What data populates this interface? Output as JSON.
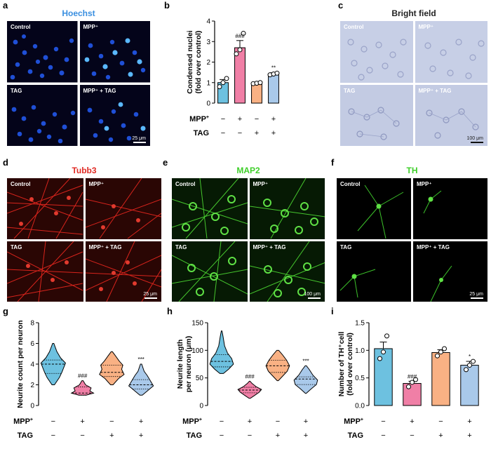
{
  "panels": {
    "a": {
      "letter": "a",
      "title": "Hoechst",
      "labels": [
        "Control",
        "MPP⁺",
        "TAG",
        "MPP⁺ + TAG"
      ],
      "scale": "25 μm",
      "title_color": "#3a8fe0"
    },
    "c": {
      "letter": "c",
      "title": "Bright field",
      "labels": [
        "Control",
        "MPP⁺",
        "TAG",
        "MPP⁺ + TAG"
      ],
      "scale": "100 μm"
    },
    "d": {
      "letter": "d",
      "title": "Tubb3",
      "labels": [
        "Control",
        "MPP⁺",
        "TAG",
        "MPP⁺ + TAG"
      ],
      "scale": "25 μm",
      "title_color": "#e02a24"
    },
    "e": {
      "letter": "e",
      "title": "MAP2",
      "labels": [
        "Control",
        "MPP⁺",
        "TAG",
        "MPP⁺ + TAG"
      ],
      "scale": "100 μm",
      "title_color": "#3fcf2a"
    },
    "f": {
      "letter": "f",
      "title": "TH",
      "labels": [
        "Control",
        "MPP⁺",
        "TAG",
        "MPP⁺ + TAG"
      ],
      "scale": "25 μm",
      "title_color": "#3fcf2a"
    }
  },
  "treatment_rows": {
    "mpp_label": "MPP",
    "mpp_sup": "+",
    "tag_label": "TAG",
    "mpp": [
      "−",
      "+",
      "−",
      "+"
    ],
    "tag": [
      "−",
      "−",
      "+",
      "+"
    ]
  },
  "colors": {
    "ctrl": "#6dc1e0",
    "mpp": "#f07fa6",
    "tag": "#f9b184",
    "both": "#a9c9ea"
  },
  "chart_data": [
    {
      "panel": "b",
      "type": "bar",
      "ylabel": [
        "Condensed nuclei",
        "(fold over control)"
      ],
      "ylim": [
        0,
        4
      ],
      "ticks": [
        "0",
        "1",
        "2",
        "3",
        "4"
      ],
      "categories": [
        "Control",
        "MPP+",
        "TAG",
        "MPP+ + TAG"
      ],
      "values": [
        1.0,
        2.7,
        0.97,
        1.42
      ],
      "errors": [
        0.15,
        0.35,
        0.05,
        0.06
      ],
      "points": [
        [
          0.8,
          1.0,
          1.2
        ],
        [
          2.4,
          2.6,
          3.4
        ],
        [
          0.95,
          0.97,
          1.0
        ],
        [
          1.38,
          1.42,
          1.46
        ]
      ],
      "annotations": [
        "",
        "###",
        "",
        "**"
      ]
    },
    {
      "panel": "g",
      "type": "violin",
      "ylabel": [
        "Neurite count per neuron"
      ],
      "ylim": [
        0,
        8
      ],
      "ticks": [
        "0",
        "2",
        "4",
        "6",
        "8"
      ],
      "categories": [
        "Control",
        "MPP+",
        "TAG",
        "MPP+ + TAG"
      ],
      "distribution": [
        [
          [
            2,
            0.1
          ],
          [
            2.7,
            0.5
          ],
          [
            3.2,
            0.7
          ],
          [
            3.8,
            0.9
          ],
          [
            4.1,
            1.0
          ],
          [
            4.6,
            0.6
          ],
          [
            5.2,
            0.3
          ],
          [
            6.0,
            0.05
          ]
        ],
        [
          [
            1,
            0.3
          ],
          [
            1.2,
            0.9
          ],
          [
            1.4,
            0.6
          ],
          [
            1.7,
            0.7
          ],
          [
            2.0,
            0.25
          ],
          [
            2.4,
            0.05
          ]
        ],
        [
          [
            2,
            0.1
          ],
          [
            2.6,
            0.55
          ],
          [
            3.0,
            1.0
          ],
          [
            3.5,
            0.8
          ],
          [
            3.9,
            0.9
          ],
          [
            4.3,
            0.6
          ],
          [
            4.8,
            0.3
          ],
          [
            5.2,
            0.05
          ]
        ],
        [
          [
            1,
            0.1
          ],
          [
            1.4,
            0.5
          ],
          [
            1.9,
            1.0
          ],
          [
            2.4,
            0.75
          ],
          [
            2.9,
            0.5
          ],
          [
            3.3,
            0.25
          ],
          [
            4.0,
            0.05
          ]
        ]
      ],
      "median": [
        4.0,
        1.2,
        3.2,
        2.0
      ],
      "q1": [
        3.1,
        1.0,
        2.8,
        1.6
      ],
      "q3": [
        4.4,
        1.8,
        3.9,
        2.5
      ],
      "annotations": [
        "",
        "###",
        "",
        "***"
      ]
    },
    {
      "panel": "h",
      "type": "violin",
      "ylabel": [
        "Neurite length",
        "per neuron (μm)"
      ],
      "ylim": [
        0,
        150
      ],
      "ticks": [
        "0",
        "50",
        "100",
        "150"
      ],
      "categories": [
        "Control",
        "MPP+",
        "TAG",
        "MPP+ + TAG"
      ],
      "distribution": [
        [
          [
            58,
            0.15
          ],
          [
            66,
            0.6
          ],
          [
            75,
            1.0
          ],
          [
            85,
            0.85
          ],
          [
            95,
            0.5
          ],
          [
            108,
            0.25
          ],
          [
            125,
            0.12
          ],
          [
            135,
            0.03
          ]
        ],
        [
          [
            13,
            0.05
          ],
          [
            18,
            0.4
          ],
          [
            24,
            0.8
          ],
          [
            29,
            1.0
          ],
          [
            34,
            0.55
          ],
          [
            40,
            0.2
          ],
          [
            44,
            0.03
          ]
        ],
        [
          [
            45,
            0.05
          ],
          [
            54,
            0.45
          ],
          [
            62,
            0.8
          ],
          [
            72,
            1.0
          ],
          [
            82,
            0.75
          ],
          [
            92,
            0.4
          ],
          [
            100,
            0.08
          ]
        ],
        [
          [
            22,
            0.03
          ],
          [
            30,
            0.45
          ],
          [
            38,
            0.9
          ],
          [
            46,
            1.0
          ],
          [
            55,
            0.6
          ],
          [
            65,
            0.3
          ],
          [
            72,
            0.05
          ]
        ]
      ],
      "median": [
        80,
        28,
        72,
        48
      ],
      "q1": [
        70,
        23,
        60,
        38
      ],
      "q3": [
        92,
        33,
        82,
        52
      ],
      "annotations": [
        "",
        "###",
        "",
        "***"
      ]
    },
    {
      "panel": "i",
      "type": "bar",
      "ylabel": [
        "Number of TH⁺cell",
        "(fold over control)"
      ],
      "ylim": [
        0,
        1.5
      ],
      "ticks": [
        "0.0",
        "0.5",
        "1.0",
        "1.5"
      ],
      "categories": [
        "Control",
        "MPP+",
        "TAG",
        "MPP+ + TAG"
      ],
      "values": [
        1.03,
        0.4,
        0.96,
        0.73
      ],
      "errors": [
        0.12,
        0.04,
        0.05,
        0.07
      ],
      "points": [
        [
          0.85,
          0.97,
          1.26
        ],
        [
          0.34,
          0.42,
          0.47
        ],
        [
          0.9,
          0.97,
          1.03
        ],
        [
          0.65,
          0.73,
          0.8
        ]
      ],
      "annotations": [
        "",
        "###",
        "",
        "*"
      ]
    }
  ]
}
